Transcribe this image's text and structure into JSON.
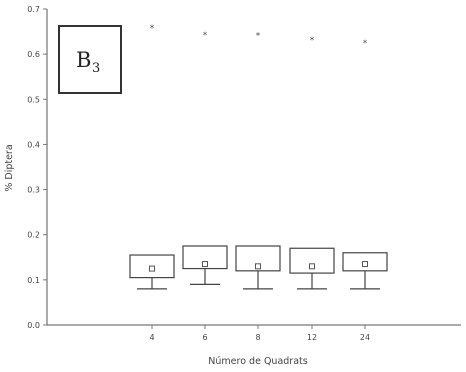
{
  "panel_label": {
    "main": "B",
    "sub": "3"
  },
  "chart_data": {
    "type": "box",
    "title": "",
    "xlabel": "Número de Quadrats",
    "ylabel": "% Diptera",
    "ylim": [
      0,
      0.7
    ],
    "yticks": [
      "0.0",
      "0.1",
      "0.2",
      "0.3",
      "0.4",
      "0.5",
      "0.6",
      "0.7"
    ],
    "yticks_values": [
      0,
      0.1,
      0.2,
      0.3,
      0.4,
      0.5,
      0.6,
      0.7
    ],
    "categories": [
      "4",
      "6",
      "8",
      "12",
      "24"
    ],
    "boxes": [
      {
        "category": "4",
        "whisker_low": 0.08,
        "q1": 0.105,
        "median": 0.125,
        "q3": 0.155,
        "outlier": 0.66
      },
      {
        "category": "6",
        "whisker_low": 0.09,
        "q1": 0.125,
        "median": 0.135,
        "q3": 0.175,
        "outlier": 0.645
      },
      {
        "category": "8",
        "whisker_low": 0.08,
        "q1": 0.12,
        "median": 0.13,
        "q3": 0.175,
        "outlier": 0.643
      },
      {
        "category": "12",
        "whisker_low": 0.08,
        "q1": 0.115,
        "median": 0.13,
        "q3": 0.17,
        "outlier": 0.633
      },
      {
        "category": "24",
        "whisker_low": 0.08,
        "q1": 0.12,
        "median": 0.135,
        "q3": 0.16,
        "outlier": 0.627
      }
    ],
    "outlier_symbol": "*",
    "grid": false,
    "legend": "none"
  }
}
